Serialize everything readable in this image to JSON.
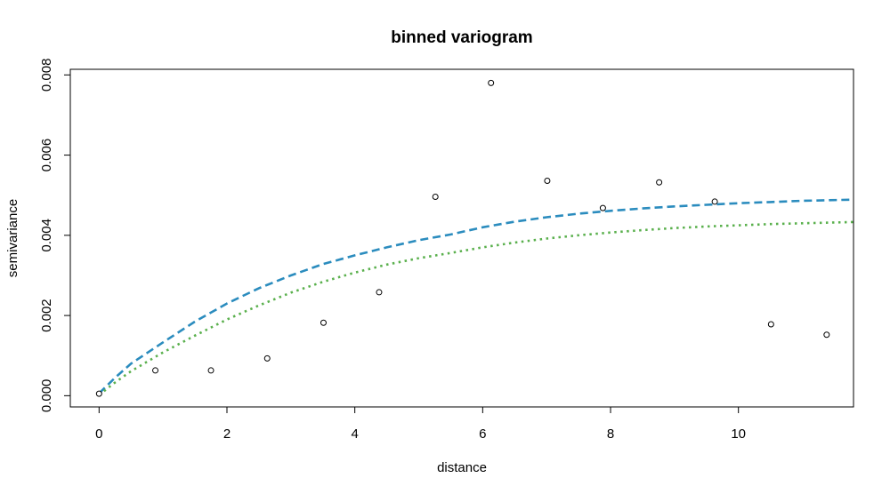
{
  "chart_data": {
    "type": "scatter",
    "title": "binned variogram",
    "xlabel": "distance",
    "ylabel": "semivariance",
    "xlim": [
      -0.45,
      11.8
    ],
    "ylim": [
      -0.00028,
      0.00814
    ],
    "x_ticks": [
      0,
      2,
      4,
      6,
      8,
      10
    ],
    "x_tick_labels": [
      "0",
      "2",
      "4",
      "6",
      "8",
      "10"
    ],
    "y_ticks": [
      0,
      0.002,
      0.004,
      0.006,
      0.008
    ],
    "y_tick_labels": [
      "0.000",
      "0.002",
      "0.004",
      "0.006",
      "0.008"
    ],
    "grid": false,
    "points": {
      "x": [
        0.0,
        0.88,
        1.75,
        2.63,
        3.51,
        4.38,
        5.26,
        6.13,
        7.01,
        7.88,
        8.76,
        9.63,
        10.51,
        11.38
      ],
      "y": [
        5e-05,
        0.00063,
        0.00063,
        0.00093,
        0.00182,
        0.00258,
        0.00496,
        0.0078,
        0.00536,
        0.00468,
        0.00532,
        0.00484,
        0.00178,
        0.00152
      ]
    },
    "series": [
      {
        "style": "dashed",
        "color": "#2b8cbe",
        "x": [
          0.0,
          0.25,
          0.5,
          1.0,
          1.5,
          2.0,
          2.5,
          3.0,
          3.5,
          4.0,
          4.5,
          5.0,
          5.5,
          6.0,
          6.5,
          7.0,
          7.5,
          8.0,
          8.5,
          9.0,
          9.5,
          10.0,
          10.5,
          11.0,
          11.8
        ],
        "y": [
          6e-05,
          0.00045,
          0.0008,
          0.00133,
          0.00185,
          0.0023,
          0.00268,
          0.003,
          0.00328,
          0.0035,
          0.0037,
          0.00388,
          0.00402,
          0.0042,
          0.00434,
          0.00445,
          0.00454,
          0.00461,
          0.00467,
          0.00472,
          0.00476,
          0.0048,
          0.00483,
          0.00486,
          0.00489
        ]
      },
      {
        "style": "dotted",
        "color": "#5ab04d",
        "x": [
          0.0,
          0.25,
          0.5,
          1.0,
          1.5,
          2.0,
          2.5,
          3.0,
          3.5,
          4.0,
          4.5,
          5.0,
          5.5,
          6.0,
          6.5,
          7.0,
          7.5,
          8.0,
          8.5,
          9.0,
          9.5,
          10.0,
          10.5,
          11.0,
          11.8
        ],
        "y": [
          2e-05,
          0.00033,
          0.00061,
          0.00108,
          0.0015,
          0.0019,
          0.00225,
          0.00257,
          0.00284,
          0.00307,
          0.00327,
          0.00343,
          0.00356,
          0.0037,
          0.00382,
          0.00392,
          0.004,
          0.00407,
          0.00413,
          0.00418,
          0.00422,
          0.00425,
          0.00428,
          0.0043,
          0.00433
        ]
      }
    ]
  }
}
